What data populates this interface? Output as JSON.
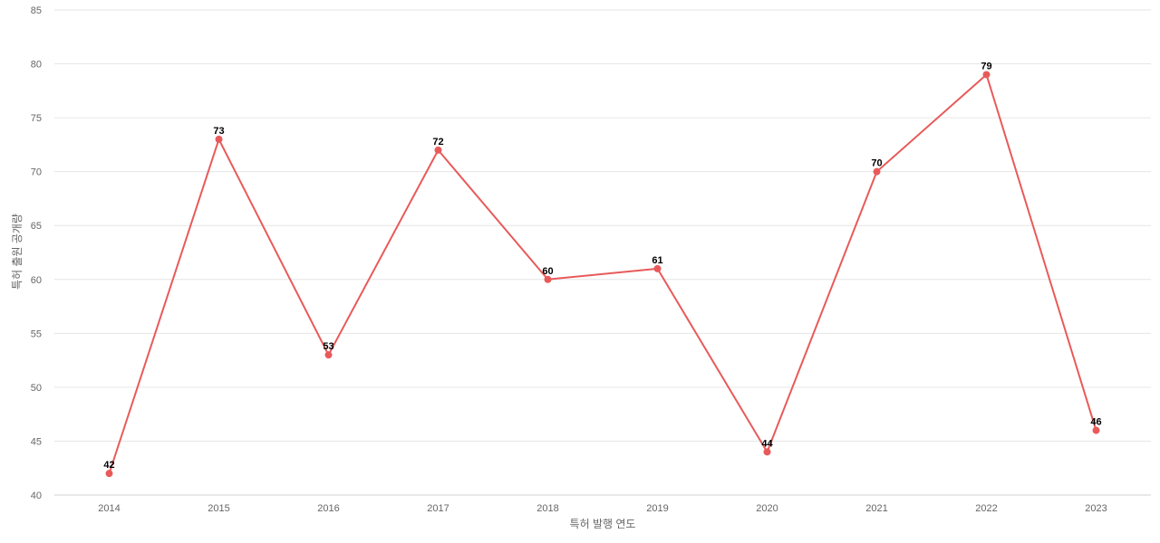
{
  "chart_data": {
    "type": "line",
    "categories": [
      "2014",
      "2015",
      "2016",
      "2017",
      "2018",
      "2019",
      "2020",
      "2021",
      "2022",
      "2023"
    ],
    "series": [
      {
        "values": [
          42,
          73,
          53,
          72,
          60,
          61,
          44,
          70,
          79,
          46
        ]
      }
    ],
    "xlabel": "특허 발행 연도",
    "ylabel": "특허 출원 공개량",
    "ylim": [
      40,
      85
    ],
    "yticks": [
      40,
      45,
      50,
      55,
      60,
      65,
      70,
      75,
      80,
      85
    ],
    "grid": true,
    "data_labels": true,
    "line_color": "#e85a5a"
  }
}
